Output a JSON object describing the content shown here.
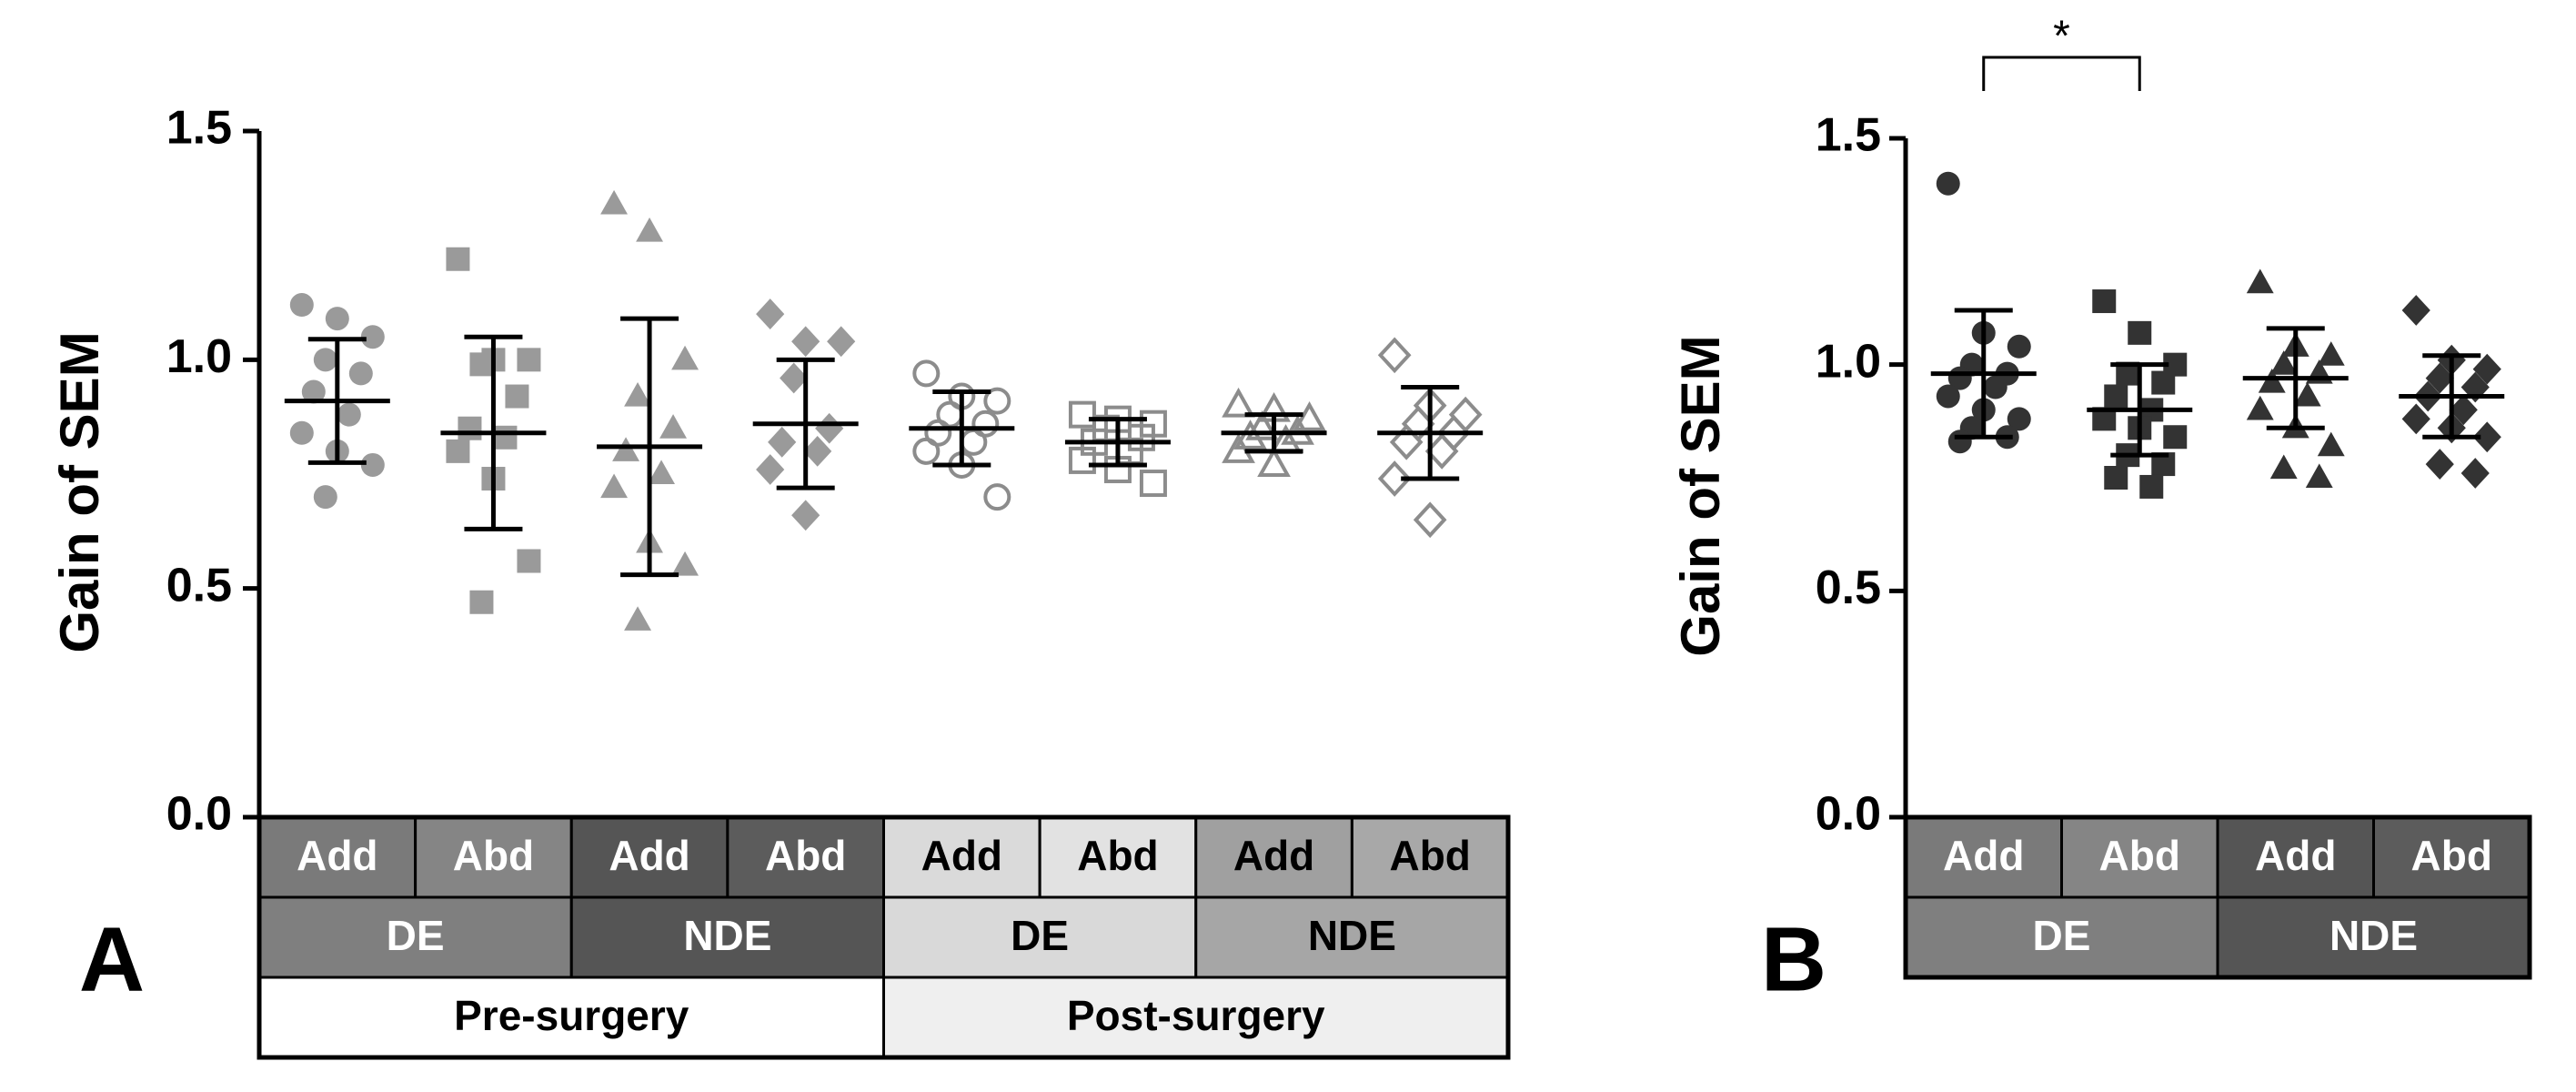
{
  "chart_data": [
    {
      "type": "dot",
      "panel_label": "A",
      "ylabel": "Gain of SEM",
      "ylim": [
        0,
        1.5
      ],
      "yticks": [
        {
          "value": 0,
          "label": "0.0"
        },
        {
          "value": 0.5,
          "label": "0.5"
        },
        {
          "value": 1,
          "label": "1.0"
        },
        {
          "value": 1.5,
          "label": "1.5"
        }
      ],
      "groups": [
        {
          "marker": "circle",
          "filled": true,
          "color": "#9a9a9a",
          "values": [
            1.12,
            1.09,
            1.05,
            1.0,
            0.97,
            0.93,
            0.88,
            0.84,
            0.8,
            0.77,
            0.7
          ],
          "mean": 0.91,
          "sd": 0.135
        },
        {
          "marker": "square",
          "filled": true,
          "color": "#9a9a9a",
          "values": [
            1.22,
            1.0,
            1.0,
            0.99,
            0.92,
            0.85,
            0.83,
            0.8,
            0.74,
            0.56,
            0.47
          ],
          "mean": 0.84,
          "sd": 0.21
        },
        {
          "marker": "triangle",
          "filled": true,
          "color": "#9a9a9a",
          "values": [
            1.34,
            1.28,
            1.0,
            0.92,
            0.85,
            0.8,
            0.75,
            0.72,
            0.6,
            0.55,
            0.43
          ],
          "mean": 0.81,
          "sd": 0.28
        },
        {
          "marker": "diamond",
          "filled": true,
          "color": "#9a9a9a",
          "values": [
            1.1,
            1.04,
            1.04,
            0.96,
            0.85,
            0.82,
            0.8,
            0.76,
            0.66
          ],
          "mean": 0.86,
          "sd": 0.14
        },
        {
          "marker": "circle",
          "filled": false,
          "color": "#8c8c8c",
          "values": [
            0.97,
            0.92,
            0.91,
            0.88,
            0.86,
            0.84,
            0.82,
            0.8,
            0.77,
            0.7
          ],
          "mean": 0.85,
          "sd": 0.08
        },
        {
          "marker": "square",
          "filled": false,
          "color": "#8c8c8c",
          "values": [
            0.88,
            0.87,
            0.86,
            0.85,
            0.83,
            0.82,
            0.8,
            0.78,
            0.76,
            0.73
          ],
          "mean": 0.82,
          "sd": 0.05
        },
        {
          "marker": "triangle",
          "filled": false,
          "color": "#8c8c8c",
          "values": [
            0.9,
            0.89,
            0.87,
            0.85,
            0.84,
            0.83,
            0.82,
            0.8,
            0.77
          ],
          "mean": 0.84,
          "sd": 0.04
        },
        {
          "marker": "diamond",
          "filled": false,
          "color": "#8c8c8c",
          "values": [
            1.01,
            0.9,
            0.88,
            0.86,
            0.84,
            0.82,
            0.8,
            0.74,
            0.65
          ],
          "mean": 0.84,
          "sd": 0.1
        }
      ],
      "category_rows": [
        [
          {
            "label": "Add",
            "fill": "#7a7a7a",
            "text_color": "#ffffff"
          },
          {
            "label": "Abd",
            "fill": "#858585",
            "text_color": "#ffffff"
          },
          {
            "label": "Add",
            "fill": "#555555",
            "text_color": "#ffffff"
          },
          {
            "label": "Abd",
            "fill": "#5c5c5c",
            "text_color": "#ffffff"
          },
          {
            "label": "Add",
            "fill": "#dadada",
            "text_color": "#000000"
          },
          {
            "label": "Abd",
            "fill": "#e2e2e2",
            "text_color": "#000000"
          },
          {
            "label": "Add",
            "fill": "#a0a0a0",
            "text_color": "#000000"
          },
          {
            "label": "Abd",
            "fill": "#a8a8a8",
            "text_color": "#000000"
          }
        ],
        [
          {
            "label": "DE",
            "fill": "#7f7f7f",
            "text_color": "#ffffff"
          },
          {
            "label": "NDE",
            "fill": "#555555",
            "text_color": "#ffffff"
          },
          {
            "label": "DE",
            "fill": "#d9d9d9",
            "text_color": "#000000"
          },
          {
            "label": "NDE",
            "fill": "#a6a6a6",
            "text_color": "#000000"
          }
        ],
        [
          {
            "label": "Pre-surgery",
            "fill": "#ffffff",
            "text_color": "#000000"
          },
          {
            "label": "Post-surgery",
            "fill": "#efefef",
            "text_color": "#000000"
          }
        ]
      ]
    },
    {
      "type": "dot",
      "panel_label": "B",
      "ylabel": "Gain of SEM",
      "ylim": [
        0,
        1.5
      ],
      "yticks": [
        {
          "value": 0,
          "label": "0.0"
        },
        {
          "value": 0.5,
          "label": "0.5"
        },
        {
          "value": 1,
          "label": "1.0"
        },
        {
          "value": 1.5,
          "label": "1.5"
        }
      ],
      "groups": [
        {
          "marker": "circle",
          "filled": true,
          "color": "#333333",
          "values": [
            1.4,
            1.07,
            1.04,
            1.0,
            0.98,
            0.97,
            0.95,
            0.93,
            0.9,
            0.88,
            0.86,
            0.84,
            0.83
          ],
          "mean": 0.98,
          "sd": 0.14
        },
        {
          "marker": "square",
          "filled": true,
          "color": "#333333",
          "values": [
            1.14,
            1.07,
            1.0,
            0.98,
            0.96,
            0.93,
            0.9,
            0.88,
            0.86,
            0.84,
            0.8,
            0.78,
            0.75,
            0.73
          ],
          "mean": 0.9,
          "sd": 0.1
        },
        {
          "marker": "triangle",
          "filled": true,
          "color": "#333333",
          "values": [
            1.18,
            1.04,
            1.02,
            1.0,
            0.98,
            0.96,
            0.93,
            0.9,
            0.86,
            0.82,
            0.77,
            0.75
          ],
          "mean": 0.97,
          "sd": 0.11
        },
        {
          "marker": "diamond",
          "filled": true,
          "color": "#333333",
          "values": [
            1.12,
            1.01,
            0.99,
            0.97,
            0.95,
            0.93,
            0.9,
            0.88,
            0.86,
            0.84,
            0.78,
            0.76
          ],
          "mean": 0.93,
          "sd": 0.09
        }
      ],
      "annotations": [
        {
          "text": "*",
          "groups": [
            0,
            1
          ]
        }
      ],
      "category_rows": [
        [
          {
            "label": "Add",
            "fill": "#7a7a7a",
            "text_color": "#ffffff"
          },
          {
            "label": "Abd",
            "fill": "#858585",
            "text_color": "#ffffff"
          },
          {
            "label": "Add",
            "fill": "#555555",
            "text_color": "#ffffff"
          },
          {
            "label": "Abd",
            "fill": "#5c5c5c",
            "text_color": "#ffffff"
          }
        ],
        [
          {
            "label": "DE",
            "fill": "#7f7f7f",
            "text_color": "#ffffff"
          },
          {
            "label": "NDE",
            "fill": "#555555",
            "text_color": "#ffffff"
          }
        ]
      ]
    }
  ]
}
